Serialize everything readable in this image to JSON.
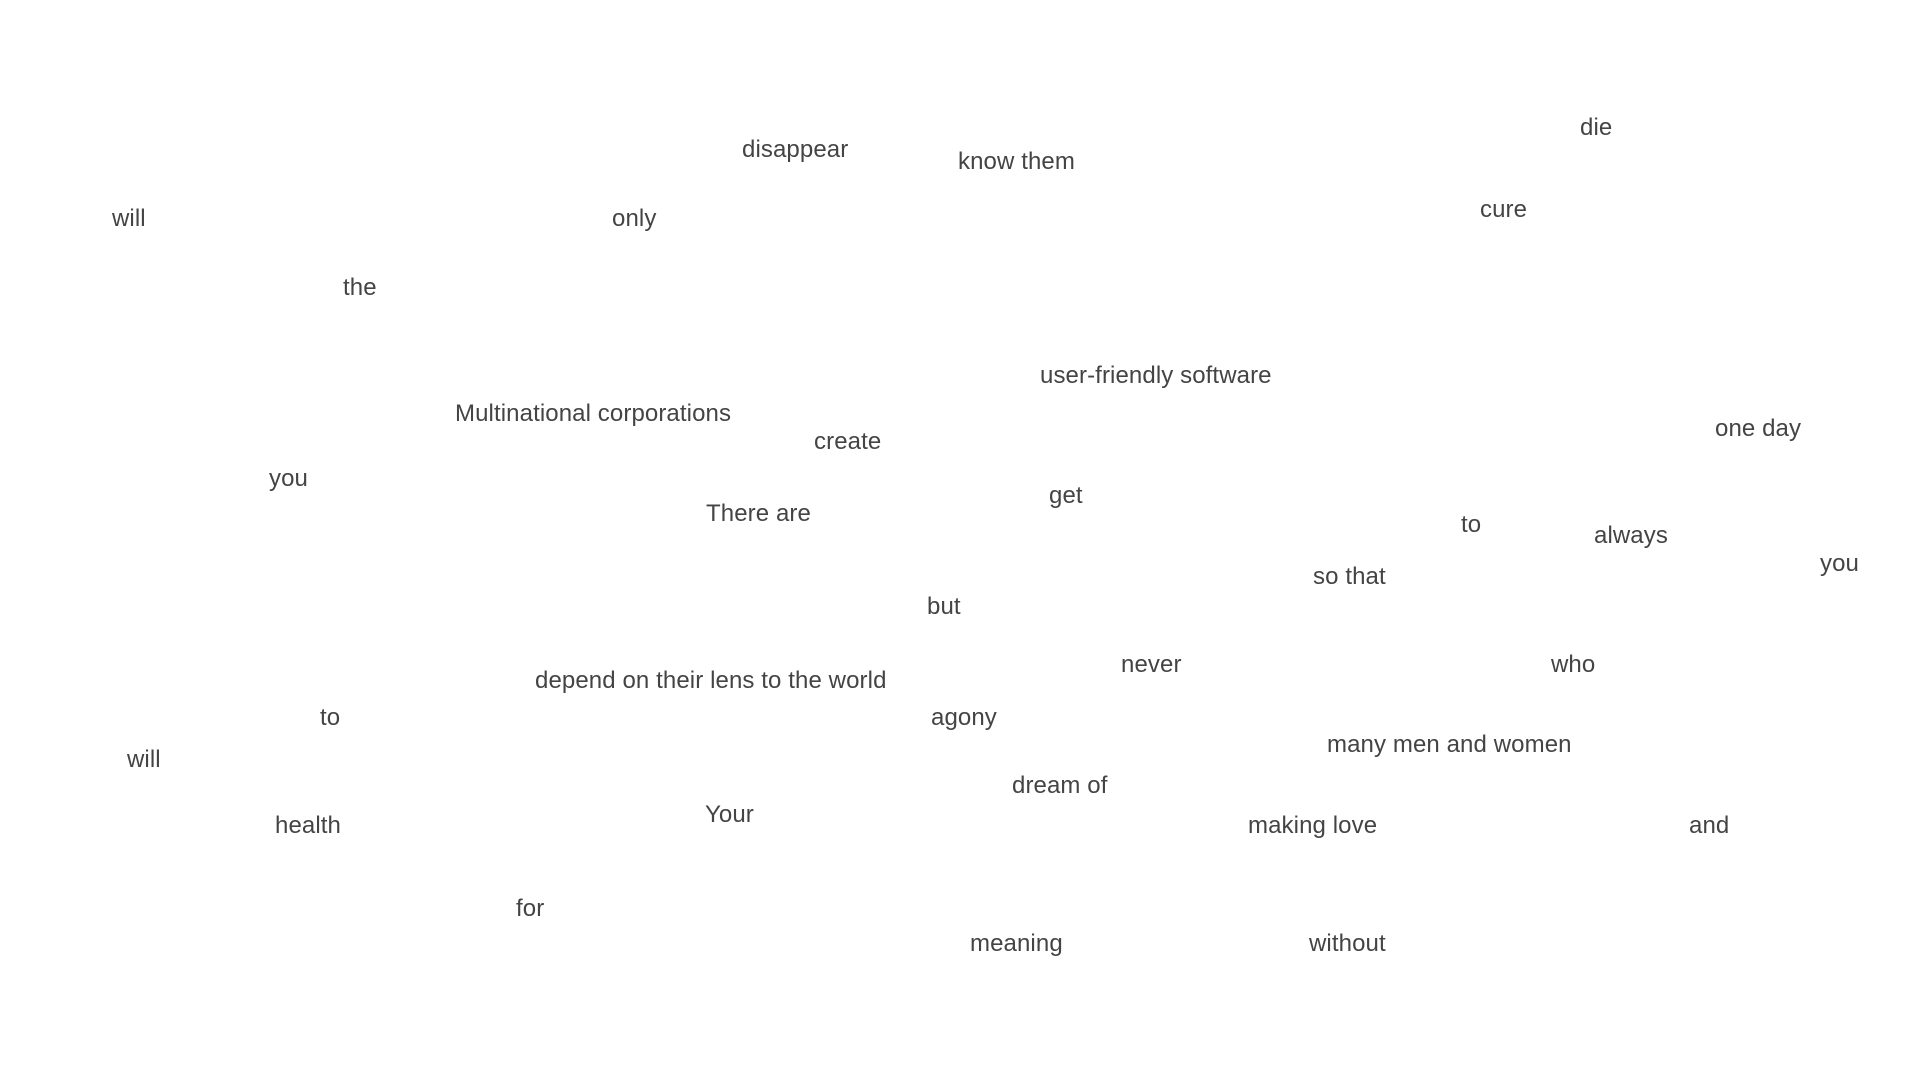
{
  "words": [
    {
      "id": "disappear",
      "text": "disappear"
    },
    {
      "id": "know-them",
      "text": "know them"
    },
    {
      "id": "die",
      "text": "die"
    },
    {
      "id": "will-top",
      "text": "will"
    },
    {
      "id": "only",
      "text": "only"
    },
    {
      "id": "cure",
      "text": "cure"
    },
    {
      "id": "the",
      "text": "the"
    },
    {
      "id": "user-friendly-software",
      "text": "user-friendly software"
    },
    {
      "id": "multinational-corporations",
      "text": "Multinational corporations"
    },
    {
      "id": "one-day",
      "text": "one day"
    },
    {
      "id": "create",
      "text": "create"
    },
    {
      "id": "you-left",
      "text": "you"
    },
    {
      "id": "get",
      "text": "get"
    },
    {
      "id": "there-are",
      "text": "There are"
    },
    {
      "id": "to-right",
      "text": "to"
    },
    {
      "id": "always",
      "text": "always"
    },
    {
      "id": "you-right",
      "text": "you"
    },
    {
      "id": "so-that",
      "text": "so that"
    },
    {
      "id": "but",
      "text": "but"
    },
    {
      "id": "never",
      "text": "never"
    },
    {
      "id": "who",
      "text": "who"
    },
    {
      "id": "depend-on-their-lens",
      "text": "depend on their lens to the world"
    },
    {
      "id": "to-left",
      "text": "to"
    },
    {
      "id": "agony",
      "text": "agony"
    },
    {
      "id": "will-bottom",
      "text": "will"
    },
    {
      "id": "many-men-and-women",
      "text": "many men and women"
    },
    {
      "id": "dream-of",
      "text": "dream of"
    },
    {
      "id": "your",
      "text": "Your"
    },
    {
      "id": "health",
      "text": "health"
    },
    {
      "id": "making-love",
      "text": "making love"
    },
    {
      "id": "and",
      "text": "and"
    },
    {
      "id": "for",
      "text": "for"
    },
    {
      "id": "meaning",
      "text": "meaning"
    },
    {
      "id": "without",
      "text": "without"
    }
  ]
}
